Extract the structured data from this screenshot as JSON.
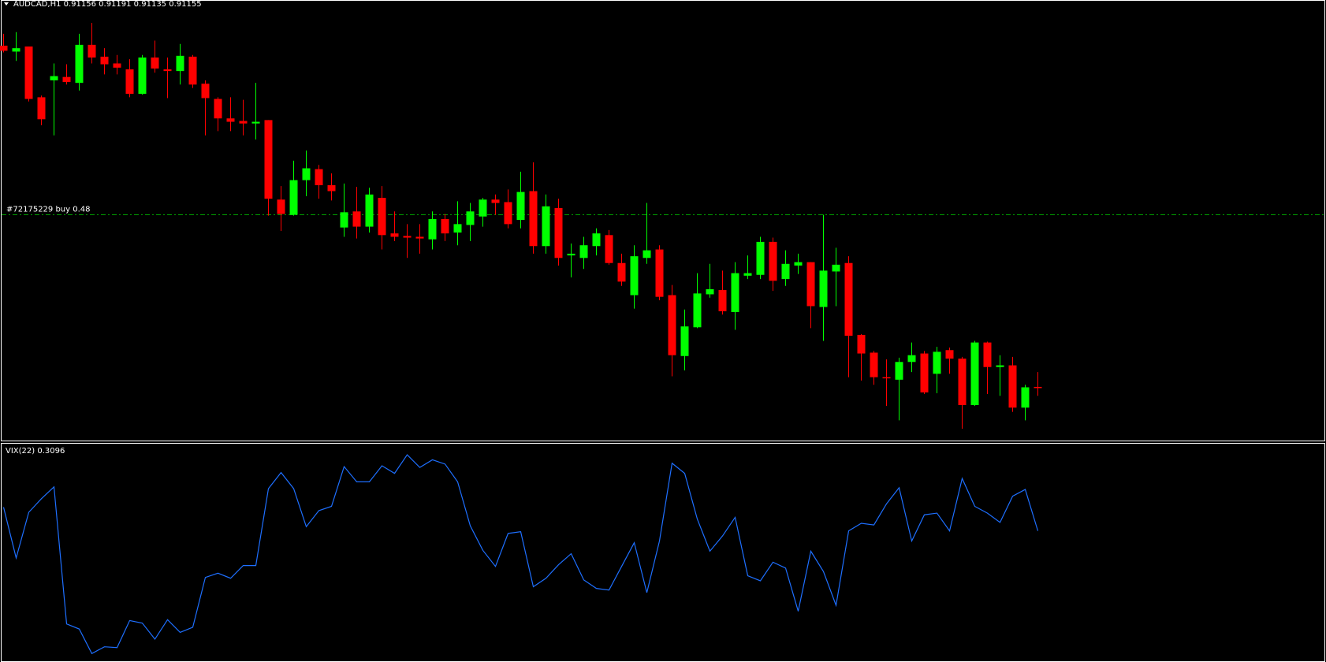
{
  "chart_data": [
    {
      "type": "candlestick",
      "title": "AUDCAD,H1  0.91156 0.91191 0.91135 0.91155",
      "up_color": "#00ff00",
      "down_color": "#ff0000",
      "ylim": [
        0.91031,
        0.92071
      ],
      "annotation_line": {
        "label": "#72175229 buy 0.48",
        "value": 0.91563,
        "color": "#00a000"
      },
      "open": [
        0.91963,
        0.91949,
        0.91961,
        0.91841,
        0.91881,
        0.91889,
        0.91875,
        0.91965,
        0.91937,
        0.91921,
        0.91907,
        0.91849,
        0.91935,
        0.91907,
        0.91903,
        0.91937,
        0.91873,
        0.91837,
        0.91791,
        0.91785,
        0.91779,
        0.91787,
        0.91599,
        0.91563,
        0.91645,
        0.91671,
        0.91633,
        0.91533,
        0.91571,
        0.91535,
        0.91603,
        0.91519,
        0.91513,
        0.91511,
        0.91505,
        0.91553,
        0.91521,
        0.91539,
        0.91559,
        0.91599,
        0.91593,
        0.91551,
        0.91619,
        0.91489,
        0.91579,
        0.91467,
        0.91461,
        0.91489,
        0.91515,
        0.91449,
        0.91373,
        0.91461,
        0.91481,
        0.91373,
        0.91229,
        0.91297,
        0.91375,
        0.91385,
        0.91333,
        0.91419,
        0.91421,
        0.91499,
        0.91411,
        0.91443,
        0.91451,
        0.91345,
        0.91429,
        0.91449,
        0.91279,
        0.91237,
        0.91179,
        0.91173,
        0.91215,
        0.91235,
        0.91187,
        0.91243,
        0.91223,
        0.91113,
        0.91261,
        0.91203,
        0.91207,
        0.91107,
        0.91156
      ],
      "high": [
        0.91991,
        0.91995,
        0.91961,
        0.91845,
        0.91921,
        0.91919,
        0.91991,
        0.92017,
        0.91957,
        0.91941,
        0.91931,
        0.91941,
        0.91975,
        0.91935,
        0.91967,
        0.91941,
        0.91881,
        0.91841,
        0.91841,
        0.91835,
        0.91875,
        0.91787,
        0.91631,
        0.91691,
        0.91715,
        0.91681,
        0.91661,
        0.91637,
        0.91629,
        0.91627,
        0.91631,
        0.91571,
        0.91541,
        0.91541,
        0.91571,
        0.91565,
        0.91595,
        0.91591,
        0.91603,
        0.91611,
        0.91623,
        0.91665,
        0.91687,
        0.91611,
        0.91601,
        0.91495,
        0.91511,
        0.91531,
        0.91527,
        0.91471,
        0.91491,
        0.91591,
        0.91491,
        0.91397,
        0.91339,
        0.91425,
        0.91447,
        0.91431,
        0.91451,
        0.91467,
        0.91511,
        0.91509,
        0.91479,
        0.91471,
        0.91451,
        0.91563,
        0.91485,
        0.91465,
        0.91281,
        0.91241,
        0.91221,
        0.91225,
        0.91261,
        0.91241,
        0.91251,
        0.91249,
        0.91227,
        0.91265,
        0.91263,
        0.91231,
        0.91227,
        0.91161,
        0.91191
      ],
      "low": [
        0.91947,
        0.91927,
        0.91831,
        0.91775,
        0.91751,
        0.91871,
        0.91857,
        0.91921,
        0.91895,
        0.91895,
        0.91841,
        0.91847,
        0.91899,
        0.91839,
        0.91871,
        0.91863,
        0.91751,
        0.91761,
        0.91761,
        0.91751,
        0.91741,
        0.91561,
        0.91525,
        0.91561,
        0.91607,
        0.91601,
        0.91597,
        0.91511,
        0.91507,
        0.91521,
        0.91481,
        0.91501,
        0.91461,
        0.91471,
        0.91481,
        0.91501,
        0.91491,
        0.91501,
        0.91535,
        0.91563,
        0.91531,
        0.91531,
        0.91471,
        0.91471,
        0.91443,
        0.91415,
        0.91435,
        0.91467,
        0.91445,
        0.91395,
        0.91341,
        0.91447,
        0.91361,
        0.91181,
        0.91195,
        0.91295,
        0.91367,
        0.91327,
        0.91291,
        0.91411,
        0.91411,
        0.91383,
        0.91395,
        0.91423,
        0.91295,
        0.91265,
        0.91347,
        0.91179,
        0.91171,
        0.91161,
        0.91111,
        0.91077,
        0.91191,
        0.91139,
        0.91141,
        0.91187,
        0.91057,
        0.91111,
        0.91139,
        0.91135,
        0.91097,
        0.91077,
        0.91135
      ],
      "close": [
        0.91951,
        0.91957,
        0.91837,
        0.91789,
        0.91891,
        0.91877,
        0.91965,
        0.91935,
        0.91919,
        0.91911,
        0.91849,
        0.91935,
        0.91909,
        0.91903,
        0.91939,
        0.91871,
        0.91839,
        0.91791,
        0.91783,
        0.91779,
        0.91783,
        0.91601,
        0.91565,
        0.91645,
        0.91673,
        0.91633,
        0.91619,
        0.91569,
        0.91535,
        0.91611,
        0.91515,
        0.91511,
        0.91509,
        0.91507,
        0.91553,
        0.91519,
        0.91541,
        0.91571,
        0.91599,
        0.91591,
        0.91541,
        0.91617,
        0.91489,
        0.91583,
        0.91461,
        0.91471,
        0.91491,
        0.91519,
        0.91449,
        0.91405,
        0.91465,
        0.91479,
        0.91369,
        0.91231,
        0.91299,
        0.91377,
        0.91387,
        0.91335,
        0.91425,
        0.91425,
        0.91499,
        0.91407,
        0.91447,
        0.91451,
        0.91347,
        0.91431,
        0.91445,
        0.91277,
        0.91235,
        0.91179,
        0.91177,
        0.91215,
        0.91231,
        0.91143,
        0.91239,
        0.91223,
        0.91113,
        0.91261,
        0.91203,
        0.91207,
        0.91107,
        0.91155,
        0.91155
      ]
    },
    {
      "type": "line",
      "title": "VIX(22) 0.3096",
      "ylim": [
        0.1546,
        0.4136
      ],
      "series": [
        {
          "color": "#1e6fff",
          "values": [
            0.3376,
            0.2776,
            0.3316,
            0.3476,
            0.3616,
            0.1996,
            0.1936,
            0.1646,
            0.1726,
            0.1716,
            0.2036,
            0.2006,
            0.1816,
            0.2046,
            0.1896,
            0.1956,
            0.2546,
            0.2596,
            0.2536,
            0.2686,
            0.2686,
            0.3596,
            0.3786,
            0.3596,
            0.3146,
            0.3336,
            0.3386,
            0.3856,
            0.3676,
            0.3676,
            0.3866,
            0.3776,
            0.3996,
            0.3846,
            0.3936,
            0.3886,
            0.3676,
            0.3156,
            0.2866,
            0.2676,
            0.3066,
            0.3086,
            0.2436,
            0.2536,
            0.2696,
            0.2826,
            0.2516,
            0.2416,
            0.2396,
            0.2676,
            0.2956,
            0.2366,
            0.2976,
            0.3896,
            0.3776,
            0.3236,
            0.2856,
            0.3036,
            0.3256,
            0.2566,
            0.2506,
            0.2726,
            0.2656,
            0.2146,
            0.2856,
            0.2616,
            0.2216,
            0.3096,
            0.3186,
            0.3166,
            0.3416,
            0.3606,
            0.2976,
            0.3286,
            0.3306,
            0.3096,
            0.3716,
            0.3386,
            0.3306,
            0.3196,
            0.3506,
            0.3586,
            0.3096
          ]
        }
      ]
    }
  ]
}
